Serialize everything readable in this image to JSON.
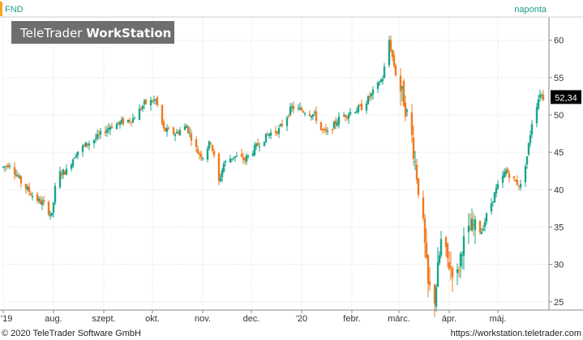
{
  "header": {
    "symbol": "FND",
    "interval": "naponta"
  },
  "watermark": {
    "brand": "TeleTrader",
    "product": "WorkStation"
  },
  "footer": {
    "copyright": "© 2020 TeleTrader Software GmbH",
    "url": "https://workstation.teletrader.com"
  },
  "colors": {
    "up": "#1aa58a",
    "down": "#f07a1e",
    "accent": "#f5a623",
    "interval_text": "#1a9a8a",
    "last_price_box": "#000000",
    "grid": "#dddddd"
  },
  "chart_data": {
    "type": "candlestick",
    "y_axis": {
      "min": 24,
      "max": 63,
      "ticks": [
        25,
        30,
        35,
        40,
        45,
        50,
        55,
        60
      ],
      "side": "right"
    },
    "x_axis": {
      "start": "2019-07-01",
      "end": "2020-06-01",
      "ticks": [
        {
          "label": "'19",
          "date": "2019-07-01"
        },
        {
          "label": "aug.",
          "date": "2019-08-01"
        },
        {
          "label": "szept.",
          "date": "2019-09-01"
        },
        {
          "label": "okt.",
          "date": "2019-10-01"
        },
        {
          "label": "nov.",
          "date": "2019-11-01"
        },
        {
          "label": "dec.",
          "date": "2019-12-01"
        },
        {
          "label": "'20",
          "date": "2020-01-01"
        },
        {
          "label": "febr.",
          "date": "2020-02-01"
        },
        {
          "label": "márc.",
          "date": "2020-03-01"
        },
        {
          "label": "ápr.",
          "date": "2020-04-01"
        },
        {
          "label": "máj.",
          "date": "2020-05-01"
        }
      ]
    },
    "last_price": 52.34,
    "last_price_label": "52,34",
    "grid": true,
    "path_key_points": [
      [
        "2019-07-01",
        43.0
      ],
      [
        "2019-07-05",
        43.5
      ],
      [
        "2019-07-12",
        41.0
      ],
      [
        "2019-07-20",
        39.0
      ],
      [
        "2019-07-26",
        38.0
      ],
      [
        "2019-07-31",
        36.5
      ],
      [
        "2019-08-03",
        42.0
      ],
      [
        "2019-08-09",
        42.5
      ],
      [
        "2019-08-15",
        45.0
      ],
      [
        "2019-08-21",
        46.0
      ],
      [
        "2019-08-28",
        47.0
      ],
      [
        "2019-09-05",
        48.5
      ],
      [
        "2019-09-12",
        49.0
      ],
      [
        "2019-09-19",
        49.5
      ],
      [
        "2019-09-26",
        51.5
      ],
      [
        "2019-10-03",
        52.0
      ],
      [
        "2019-10-08",
        48.0
      ],
      [
        "2019-10-15",
        47.5
      ],
      [
        "2019-10-22",
        48.5
      ],
      [
        "2019-10-29",
        45.0
      ],
      [
        "2019-11-01",
        44.5
      ],
      [
        "2019-11-06",
        46.5
      ],
      [
        "2019-11-11",
        41.0
      ],
      [
        "2019-11-14",
        43.5
      ],
      [
        "2019-11-20",
        44.5
      ],
      [
        "2019-11-27",
        44.0
      ],
      [
        "2019-12-05",
        46.0
      ],
      [
        "2019-12-12",
        47.5
      ],
      [
        "2019-12-18",
        48.0
      ],
      [
        "2019-12-26",
        51.0
      ],
      [
        "2020-01-03",
        50.5
      ],
      [
        "2020-01-09",
        50.0
      ],
      [
        "2020-01-13",
        48.0
      ],
      [
        "2020-01-17",
        47.5
      ],
      [
        "2020-01-24",
        49.5
      ],
      [
        "2020-02-01",
        50.5
      ],
      [
        "2020-02-07",
        51.0
      ],
      [
        "2020-02-14",
        53.0
      ],
      [
        "2020-02-20",
        55.0
      ],
      [
        "2020-02-24",
        60.0
      ],
      [
        "2020-02-28",
        55.5
      ],
      [
        "2020-03-04",
        52.0
      ],
      [
        "2020-03-09",
        47.0
      ],
      [
        "2020-03-12",
        42.0
      ],
      [
        "2020-03-16",
        35.0
      ],
      [
        "2020-03-19",
        27.0
      ],
      [
        "2020-03-23",
        25.5
      ],
      [
        "2020-03-27",
        33.0
      ],
      [
        "2020-04-01",
        30.0
      ],
      [
        "2020-04-06",
        28.5
      ],
      [
        "2020-04-09",
        32.5
      ],
      [
        "2020-04-15",
        35.0
      ],
      [
        "2020-04-21",
        34.5
      ],
      [
        "2020-04-24",
        36.5
      ],
      [
        "2020-04-30",
        40.0
      ],
      [
        "2020-05-06",
        42.5
      ],
      [
        "2020-05-12",
        41.0
      ],
      [
        "2020-05-15",
        40.5
      ],
      [
        "2020-05-19",
        44.5
      ],
      [
        "2020-05-22",
        49.0
      ],
      [
        "2020-05-27",
        53.0
      ],
      [
        "2020-05-29",
        52.34
      ]
    ]
  }
}
